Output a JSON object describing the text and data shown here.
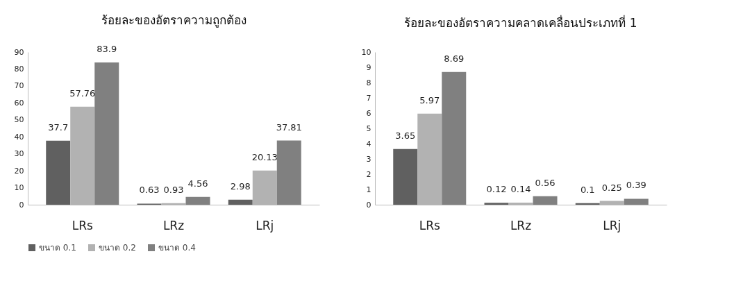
{
  "chart_data": [
    {
      "type": "bar",
      "title": "ร้อยละของอัตราความถูกต้อง",
      "categories": [
        "LRs",
        "LRz",
        "LRj"
      ],
      "series": [
        {
          "name": "ขนาด 0.1",
          "color": "#606060",
          "values": [
            37.7,
            0.63,
            2.98
          ]
        },
        {
          "name": "ขนาด 0.2",
          "color": "#b2b2b2",
          "values": [
            57.76,
            0.93,
            20.13
          ]
        },
        {
          "name": "ขนาด 0.4",
          "color": "#808080",
          "values": [
            83.9,
            4.56,
            37.81
          ]
        }
      ],
      "ylim": [
        0,
        90
      ],
      "yticks": [
        0,
        10,
        20,
        30,
        40,
        50,
        60,
        70,
        80,
        90
      ],
      "grid": false,
      "legend": "bottom",
      "data_labels": true
    },
    {
      "type": "bar",
      "title": "ร้อยละของอัตราความคลาดเคลื่อนประเภทที่ 1",
      "categories": [
        "LRs",
        "LRz",
        "LRj"
      ],
      "series": [
        {
          "name": "ขนาด 0.1",
          "color": "#606060",
          "values": [
            3.65,
            0.12,
            0.1
          ]
        },
        {
          "name": "ขนาด 0.2",
          "color": "#b2b2b2",
          "values": [
            5.97,
            0.14,
            0.25
          ]
        },
        {
          "name": "ขนาด 0.4",
          "color": "#808080",
          "values": [
            8.69,
            0.56,
            0.39
          ]
        }
      ],
      "ylim": [
        0,
        10
      ],
      "yticks": [
        0,
        1,
        2,
        3,
        4,
        5,
        6,
        7,
        8,
        9,
        10
      ],
      "grid": false,
      "legend": "bottom",
      "data_labels": true
    }
  ]
}
